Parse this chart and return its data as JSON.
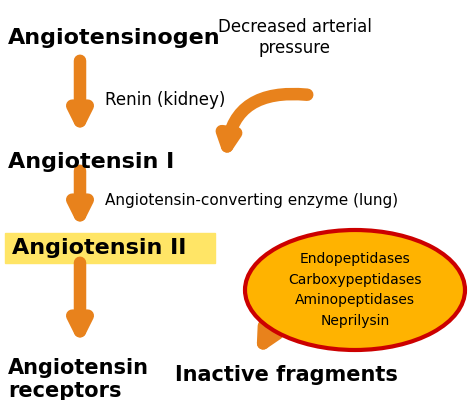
{
  "background_color": "#ffffff",
  "arrow_color": "#E8821C",
  "text_color_black": "#000000",
  "highlight_box_color": "#FFE566",
  "ellipse_fill": "#FFB300",
  "ellipse_edge": "#CC0000",
  "labels": {
    "angiotensinogen": "Angiotensinogen",
    "angiotensin1": "Angiotensin I",
    "angiotensin2": "Angiotensin II",
    "renin": "Renin (kidney)",
    "ace": "Angiotensin-converting enzyme (lung)",
    "decreased": "Decreased arterial\npressure",
    "receptors": "Angiotensin\nreceptors",
    "inactive": "Inactive fragments",
    "enzymes": "Endopeptidases\nCarboxypeptidases\nAminopeptidases\nNeprilysin"
  },
  "font_sizes": {
    "large": 15,
    "medium": 12,
    "small": 10
  }
}
